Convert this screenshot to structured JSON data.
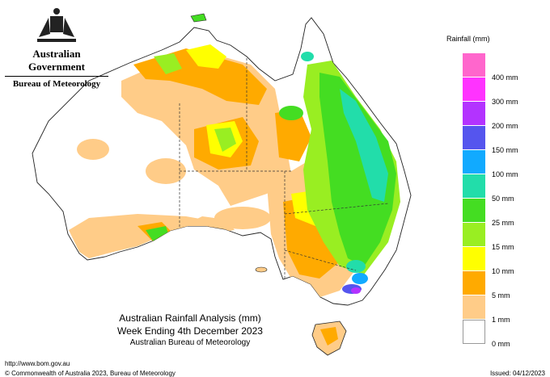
{
  "header": {
    "government": "Australian Government",
    "bureau": "Bureau of Meteorology"
  },
  "map": {
    "title_line1": "Australian Rainfall Analysis (mm)",
    "title_line2": "Week Ending 4th December 2023",
    "title_line3": "Australian Bureau of Meteorology"
  },
  "legend": {
    "title": "Rainfall (mm)",
    "bins": [
      {
        "label": "",
        "color": "#ff66cc"
      },
      {
        "label": "400 mm",
        "color": "#ff33ff"
      },
      {
        "label": "300 mm",
        "color": "#b333ff"
      },
      {
        "label": "200 mm",
        "color": "#5555ee"
      },
      {
        "label": "150 mm",
        "color": "#11aaff"
      },
      {
        "label": "100 mm",
        "color": "#22ddaa"
      },
      {
        "label": "50 mm",
        "color": "#44dd22"
      },
      {
        "label": "25 mm",
        "color": "#99ee22"
      },
      {
        "label": "15 mm",
        "color": "#ffff00"
      },
      {
        "label": "10 mm",
        "color": "#ffaa00"
      },
      {
        "label": "5 mm",
        "color": "#ffcc88"
      },
      {
        "label": "1 mm",
        "color": "#ffffff"
      }
    ],
    "bottom_label": "0 mm"
  },
  "footer": {
    "url": "http://www.bom.gov.au",
    "copyright": "© Commonwealth of Australia 2023, Bureau of Meteorology",
    "issued": "Issued: 04/12/2023"
  }
}
